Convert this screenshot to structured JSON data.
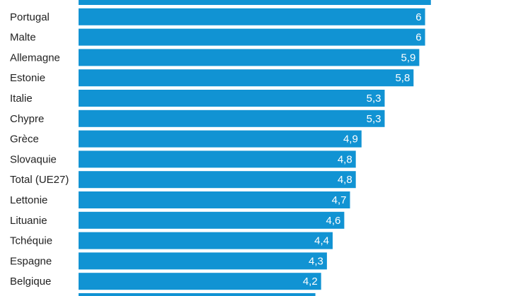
{
  "chart_data": {
    "type": "bar",
    "orientation": "horizontal",
    "bar_color": "#1193d3",
    "value_label_color": "#ffffff",
    "category_label_color": "#222222",
    "background": "#ffffff",
    "grid": false,
    "legend": "none",
    "categories": [
      "",
      "Portugal",
      "Malte",
      "Allemagne",
      "Estonie",
      "Italie",
      "Chypre",
      "Grèce",
      "Slovaquie",
      "Total (UE27)",
      "Lettonie",
      "Lituanie",
      "Tchéquie",
      "Espagne",
      "Belgique",
      ""
    ],
    "values": [
      6.1,
      6,
      6,
      5.9,
      5.8,
      5.3,
      5.3,
      4.9,
      4.8,
      4.8,
      4.7,
      4.6,
      4.4,
      4.3,
      4.2,
      4.1
    ],
    "value_labels": [
      "",
      "6",
      "6",
      "5,9",
      "5,8",
      "5,3",
      "5,3",
      "4,9",
      "4,8",
      "4,8",
      "4,7",
      "4,6",
      "4,4",
      "4,3",
      "4,2",
      ""
    ]
  }
}
